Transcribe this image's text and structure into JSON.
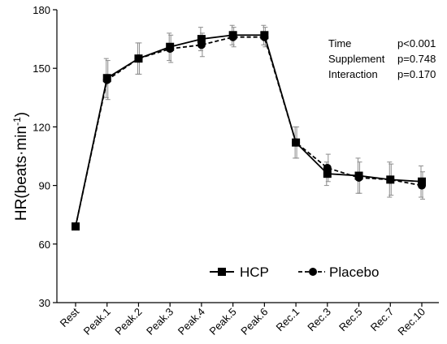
{
  "chart_data": {
    "type": "line",
    "title": "",
    "xlabel": "",
    "ylabel": "HR(beats·min",
    "ylabel_superscript": "-1",
    "ylabel_close": ")",
    "ylim": [
      30,
      180
    ],
    "yticks": [
      30,
      60,
      90,
      120,
      150,
      180
    ],
    "categories": [
      "Rest",
      "Peak.1",
      "Peak.2",
      "Peak.3",
      "Peak.4",
      "Peak.5",
      "Peak.6",
      "Rec.1",
      "Rec.3",
      "Rec.5",
      "Rec.7",
      "Rec.10"
    ],
    "series": [
      {
        "name": "HCP",
        "marker": "square",
        "line_style": "solid",
        "values": [
          69,
          145,
          155,
          161,
          165,
          167,
          167,
          112,
          96,
          95,
          93,
          92
        ],
        "error": [
          0,
          10,
          8,
          7,
          6,
          5,
          5,
          8,
          6,
          9,
          9,
          8
        ]
      },
      {
        "name": "Placebo",
        "marker": "circle",
        "line_style": "dashed",
        "values": [
          69,
          144,
          155,
          160,
          162,
          166,
          166,
          112,
          99,
          94,
          93,
          90
        ],
        "error": [
          0,
          10,
          8,
          7,
          6,
          5,
          5,
          8,
          7,
          8,
          8,
          7
        ]
      }
    ],
    "legend": {
      "placement": "bottom-right"
    },
    "stats": [
      {
        "label": "Time",
        "value": "p<0.001"
      },
      {
        "label": "Supplement",
        "value": "p=0.748"
      },
      {
        "label": "Interaction",
        "value": "p=0.170"
      }
    ],
    "grid": false
  }
}
